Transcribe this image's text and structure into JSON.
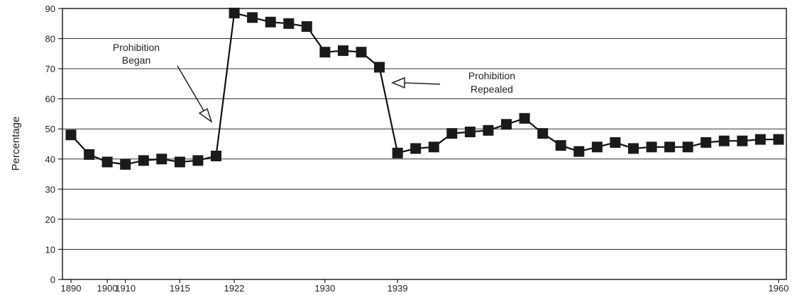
{
  "chart_data": {
    "type": "line",
    "title": "",
    "xlabel": "",
    "ylabel": "Percentage",
    "ylim": [
      0,
      90
    ],
    "yticks": [
      "0",
      "10",
      "20",
      "30",
      "40",
      "50",
      "60",
      "70",
      "80",
      "90"
    ],
    "xticks": [
      "1890",
      "1900",
      "1910",
      "1915",
      "1922",
      "1930",
      "1939",
      "1960"
    ],
    "grid": true,
    "legend": "none",
    "marker": "square",
    "series": [
      {
        "values": [
          48,
          41.5,
          39,
          38.2,
          39.5,
          40,
          39,
          39.5,
          41,
          88.5,
          87,
          85.5,
          85,
          84,
          75.5,
          76,
          75.5,
          70.5,
          42,
          43.5,
          44,
          48.5,
          49,
          49.5,
          51.5,
          53.5,
          48.5,
          44.5,
          42.5,
          44,
          45.5,
          43.5,
          44,
          44,
          44,
          45.5,
          46,
          46,
          46.5,
          46.5
        ]
      }
    ],
    "annotations": [
      {
        "lines": [
          "Prohibition",
          "Began"
        ]
      },
      {
        "lines": [
          "Prohibition",
          "Repealed"
        ]
      }
    ]
  }
}
